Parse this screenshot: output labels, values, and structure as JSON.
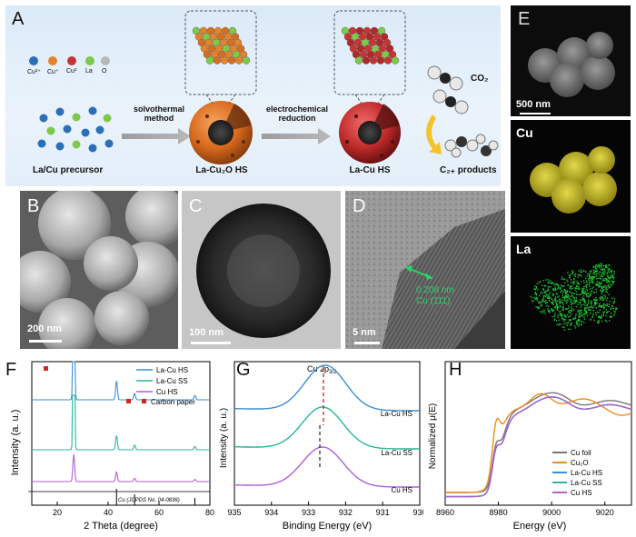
{
  "panelA": {
    "letter": "A",
    "legend": [
      "Cu²⁺",
      "Cu⁺",
      "Cu²",
      "La",
      "O"
    ],
    "legend_colors": [
      "#2b6fb8",
      "#e5832b",
      "#c63534",
      "#7ec84a",
      "#b8b8b8"
    ],
    "step1": "solvothermal\nmethod",
    "step2": "electrochemical\nreduction",
    "precursor": "La/Cu precursor",
    "hs1": "La-Cu₂O HS",
    "hs2": "La-Cu HS",
    "co2": "CO₂",
    "products": "C₂₊ products"
  },
  "panelB": {
    "letter": "B",
    "scale": "200 nm"
  },
  "panelC": {
    "letter": "C",
    "scale": "100 nm"
  },
  "panelD": {
    "letter": "D",
    "scale": "5 nm",
    "annot1": "0.208 nm",
    "annot2": "Cu (111)"
  },
  "panelE": {
    "letter": "E",
    "scale": "500 nm",
    "cu_label": "Cu",
    "la_label": "La"
  },
  "panelF": {
    "letter": "F",
    "xlabel": "2 Theta (degree)",
    "ylabel": "Intensity (a. u.)",
    "ref_label": "Cu (JCPDS No. 04-0836)",
    "legend": [
      "La-Cu HS",
      "La-Cu SS",
      "Cu HS"
    ],
    "marker_label": "Carbon paper",
    "colors": [
      "#3a8fd6",
      "#27b69a",
      "#b05ed6"
    ],
    "xticks": [
      20,
      40,
      60,
      80
    ]
  },
  "panelG": {
    "letter": "G",
    "xlabel": "Binding Energy (eV)",
    "ylabel": "Intensity (a. u.)",
    "peak_label": "Cu 2p",
    "peak_sub": "3/2",
    "curve_labels": [
      "La-Cu HS",
      "La-Cu SS",
      "Cu HS"
    ],
    "colors": [
      "#3a8fd6",
      "#27b69a",
      "#b05ed6"
    ],
    "xticks": [
      935,
      934,
      933,
      932,
      931,
      930
    ]
  },
  "panelH": {
    "letter": "H",
    "xlabel": "Energy (eV)",
    "ylabel": "Normalized μ(E)",
    "legend": [
      "Cu foil",
      "Cu₂O",
      "La-Cu HS",
      "La-Cu SS",
      "Cu HS"
    ],
    "colors": [
      "#777777",
      "#f08c1c",
      "#3a8fd6",
      "#27b69a",
      "#b05ed6"
    ],
    "xticks": [
      8960,
      8980,
      9000,
      9020
    ]
  }
}
